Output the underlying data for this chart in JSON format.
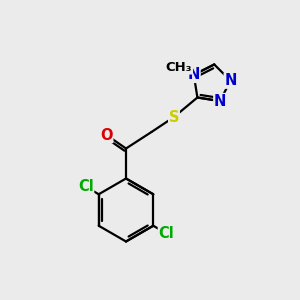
{
  "background_color": "#ebebeb",
  "atom_colors": {
    "C": "#000000",
    "N": "#0000cc",
    "O": "#dd0000",
    "S": "#cccc00",
    "Cl": "#00aa00",
    "CH3": "#000000"
  },
  "bond_color": "#000000",
  "bond_width": 1.6,
  "font_size_atoms": 10.5,
  "font_size_methyl": 9.5
}
